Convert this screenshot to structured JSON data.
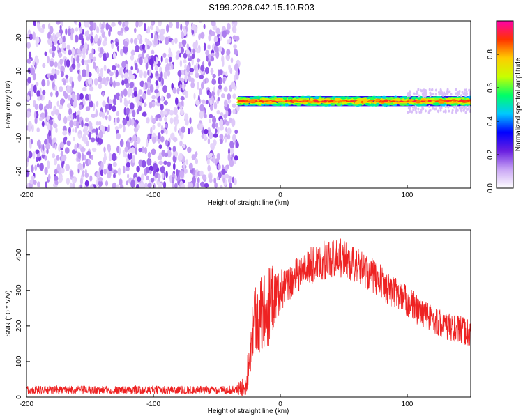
{
  "title": "S199.2026.042.15.10.R03",
  "chart_data": [
    {
      "type": "heatmap",
      "xlabel": "Height of straight line (km)",
      "ylabel": "Frequency (Hz)",
      "xlim": [
        -200,
        150
      ],
      "ylim": [
        -25,
        25
      ],
      "xticks": [
        -200,
        -100,
        0,
        100
      ],
      "yticks": [
        -20,
        -10,
        0,
        10,
        20
      ],
      "noise_region_x": [
        -200,
        -33
      ],
      "signal_band": {
        "x_start": -33,
        "x_end": 150,
        "center_frequency": 1,
        "width_hz": 3
      },
      "colorbar": {
        "label": "Normalized spectral amplitude",
        "ticks": [
          0.0,
          0.2,
          0.4,
          0.6,
          0.8
        ],
        "range": [
          0,
          1
        ],
        "colormap": [
          "#ffffff",
          "#c9a6f5",
          "#6a1fe0",
          "#0000ff",
          "#00c8ff",
          "#00ff66",
          "#c8ff00",
          "#ffcc00",
          "#ff3300",
          "#ff00aa"
        ]
      }
    },
    {
      "type": "line",
      "xlabel": "Height of straight line (km)",
      "ylabel": "SNR (10 * V/V)",
      "xlim": [
        -200,
        150
      ],
      "ylim": [
        0,
        470
      ],
      "xticks": [
        -200,
        -100,
        0,
        100
      ],
      "yticks": [
        0,
        100,
        200,
        300,
        400
      ],
      "color": "#ee2222",
      "series": [
        {
          "x": [
            -200,
            -175,
            -150,
            -125,
            -100,
            -75,
            -50,
            -35,
            -28,
            -25,
            -22,
            -20,
            -18,
            -15,
            -10,
            -5,
            0,
            5,
            10,
            15,
            20,
            25,
            30,
            35,
            40,
            45,
            50,
            55,
            60,
            65,
            70,
            75,
            80,
            85,
            90,
            95,
            100,
            105,
            110,
            115,
            120,
            125,
            130,
            135,
            140,
            145,
            150
          ],
          "values": [
            20,
            20,
            20,
            20,
            20,
            20,
            20,
            20,
            30,
            90,
            200,
            230,
            220,
            230,
            250,
            280,
            300,
            310,
            330,
            350,
            360,
            370,
            380,
            385,
            390,
            392,
            390,
            380,
            370,
            360,
            350,
            335,
            320,
            305,
            295,
            285,
            270,
            255,
            240,
            230,
            220,
            210,
            200,
            195,
            190,
            185,
            180
          ],
          "noise": [
            12,
            12,
            12,
            12,
            12,
            12,
            12,
            12,
            30,
            60,
            90,
            110,
            100,
            110,
            120,
            90,
            60,
            50,
            50,
            50,
            50,
            55,
            55,
            55,
            55,
            55,
            55,
            55,
            50,
            50,
            50,
            50,
            50,
            45,
            45,
            45,
            45,
            45,
            40,
            40,
            40,
            40,
            40,
            40,
            40,
            40,
            40
          ]
        }
      ]
    }
  ]
}
